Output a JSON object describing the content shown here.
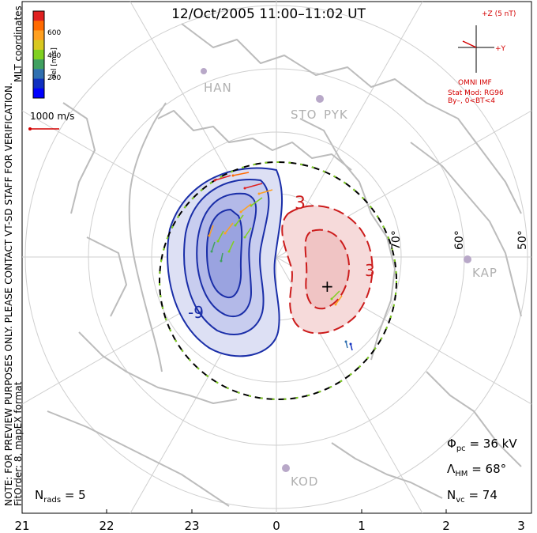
{
  "title": "12/Oct/2005 11:00–11:02 UT",
  "side_note": "NOTE: FOR PREVIEW PURPOSES ONLY. PLEASE CONTACT VT-SD STAFF FOR VERIFICATION.",
  "fit_info": "FitOrder: 8, mapEX format",
  "coords": "MLT coordinates",
  "colorbar": {
    "label": "Vel [m/s]",
    "ticks": [
      "600",
      "400",
      "200"
    ],
    "colors": [
      "#e02020",
      "#ff6a00",
      "#ffa020",
      "#d8c820",
      "#80d020",
      "#40a060",
      "#3070b0",
      "#1030c0",
      "#0000ff"
    ]
  },
  "scale_vector": {
    "label": "1000 m/s",
    "color": "#d40000"
  },
  "imf": {
    "axis_z": "+Z (5 nT)",
    "axis_y": "+Y",
    "source": "OMNI IMF",
    "model": "Stat Mod: RG96",
    "condition": "By–, 0<BT<4"
  },
  "mlt_ticks": [
    "21",
    "22",
    "23",
    "0",
    "1",
    "2",
    "3"
  ],
  "latitude_labels": [
    "70°",
    "60°",
    "50°"
  ],
  "stations": [
    "HAN",
    "STO",
    "PYK",
    "KAP",
    "KOD"
  ],
  "contour_labels": {
    "negative": "-9",
    "positive_1": "3",
    "positive_2": "3"
  },
  "stats": {
    "phi_pc_label": "Φ",
    "phi_pc_sub": "pc",
    "phi_pc_value": "= 36 kV",
    "lambda_label": "Λ",
    "lambda_sub": "HM",
    "lambda_value": "= 68°",
    "nvc_label": "N",
    "nvc_sub": "vc",
    "nvc_value": "= 74",
    "nrads_label": "N",
    "nrads_sub": "rads",
    "nrads_value": "= 5"
  },
  "colors": {
    "negative_cell": "#1a2ea8",
    "positive_cell": "#cc1c1c",
    "neg_fill": "#d4d8f0",
    "pos_fill": "#f4d4d4",
    "coastline": "#b8b8b8",
    "grid": "#c8c8c8"
  }
}
